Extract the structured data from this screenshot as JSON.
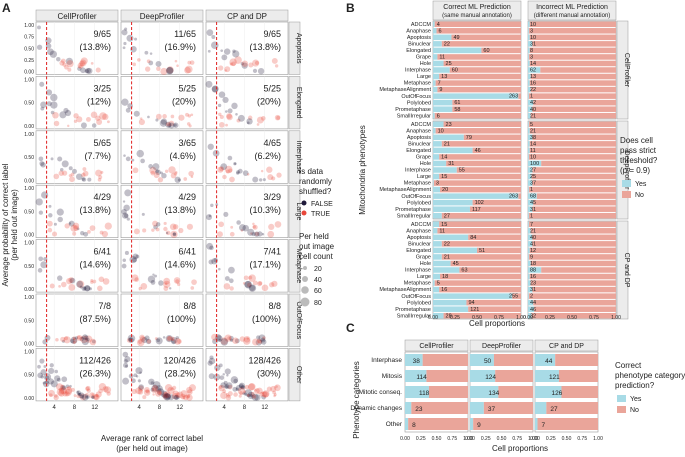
{
  "colors": {
    "false_color": "#1f1a3a",
    "true_color": "#e8473a",
    "yes_color": "#a8dbe6",
    "no_color": "#eaa59a",
    "strip_bg": "#ececec",
    "dashed": "#e02020"
  },
  "panel_labels": {
    "a": "A",
    "b": "B",
    "c": "C"
  },
  "chart_data": [
    {
      "type": "scatter",
      "panel": "A",
      "columns": [
        "CellProfiler",
        "DeepProfiler",
        "CP and DP"
      ],
      "rows": [
        "Apoptosis",
        "Elongated",
        "Interphase",
        "Large",
        "Metaphase",
        "OutOfFocus",
        "Other"
      ],
      "annotations": [
        [
          "9/65",
          "(13.8%)",
          "11/65",
          "(16.9%)",
          "9/65",
          "(13.8%)"
        ],
        [
          "3/25",
          "(12%)",
          "5/25",
          "(20%)",
          "5/25",
          "(20%)"
        ],
        [
          "5/65",
          "(7.7%)",
          "3/65",
          "(4.6%)",
          "4/65",
          "(6.2%)"
        ],
        [
          "4/29",
          "(13.8%)",
          "4/29",
          "(13.8%)",
          "3/29",
          "(10.3%)"
        ],
        [
          "6/41",
          "(14.6%)",
          "6/41",
          "(14.6%)",
          "7/41",
          "(17.1%)"
        ],
        [
          "7/8",
          "(87.5%)",
          "8/8",
          "(100%)",
          "8/8",
          "(100%)"
        ],
        [
          "112/426",
          "(26.3%)",
          "120/426",
          "(28.2%)",
          "128/426",
          "(30%)"
        ]
      ],
      "xlabel": "Average rank of correct label",
      "xlabel2": "(per held out image)",
      "ylabel": "Average probability of correct label",
      "ylabel2": "(per held out image)",
      "x_ticks": [
        "4",
        "8",
        "12"
      ],
      "y_ticks": [
        "0.00",
        "0.25",
        "0.50",
        "0.75",
        "1.00"
      ],
      "xlim": [
        1,
        16
      ],
      "ylim": [
        0,
        1
      ],
      "dashed_x": 2.5,
      "legend_shuffled": {
        "title1": "Is data",
        "title2": "randomly",
        "title3": "shuffled?",
        "items": [
          "FALSE",
          "TRUE"
        ]
      },
      "legend_size": {
        "title1": "Per held",
        "title2": "out image",
        "title3": "cell count",
        "items": [
          "20",
          "40",
          "60",
          "80"
        ]
      }
    },
    {
      "type": "bar",
      "panel": "B",
      "orientation": "horizontal-stacked",
      "columns": [
        "Correct ML Prediction",
        "Incorrect ML Prediction"
      ],
      "columns_sub": [
        "(same manual annotation)",
        "(different manual annotation)"
      ],
      "rows": [
        "CellProfiler",
        "DeepProfiler",
        "CP and DP"
      ],
      "categories": [
        "ADCCM",
        "Anaphase",
        "Apoptosis",
        "Binuclear",
        "Elongated",
        "Grape",
        "Hole",
        "Interphase",
        "Large",
        "Metaphase",
        "MetaphaseAlignment",
        "OutOfFocus",
        "Polylobed",
        "Prometaphase",
        "SmallIrregular"
      ],
      "counts": [
        [
          [
            4,
            6,
            49,
            22,
            60,
            11,
            25,
            60,
            13,
            7,
            9,
            263,
            61,
            58,
            6
          ],
          [
            10,
            3,
            10,
            31,
            8,
            3,
            14,
            62,
            13,
            16,
            22,
            1,
            42,
            40,
            21
          ]
        ],
        [
          [
            23,
            10,
            79,
            21,
            46,
            14,
            31,
            55,
            15,
            3,
            20,
            263,
            102,
            117,
            27
          ],
          [
            5,
            21,
            38,
            14,
            11,
            10,
            100,
            27,
            25,
            37,
            1,
            68,
            45,
            31,
            1
          ]
        ],
        [
          [
            15,
            11,
            84,
            22,
            51,
            21,
            45,
            63,
            18,
            5,
            16,
            255,
            94,
            121,
            28
          ],
          [
            7,
            21,
            40,
            41,
            12,
            9,
            18,
            88,
            16,
            23,
            31,
            2,
            44,
            46,
            32
          ]
        ]
      ],
      "yes_fraction": [
        [
          [
            0.02,
            0.04,
            0.21,
            0.1,
            0.55,
            0.05,
            0.12,
            0.19,
            0.07,
            0.03,
            0.05,
            0.97,
            0.22,
            0.22,
            0.02
          ],
          [
            0.02,
            0.01,
            0.02,
            0.05,
            0.02,
            0.01,
            0.02,
            0.14,
            0.03,
            0.02,
            0.03,
            0.01,
            0.06,
            0.05,
            0.03
          ]
        ],
        [
          [
            0.12,
            0.03,
            0.35,
            0.1,
            0.45,
            0.07,
            0.15,
            0.27,
            0.07,
            0.01,
            0.08,
            0.97,
            0.45,
            0.42,
            0.1
          ],
          [
            0.01,
            0.02,
            0.05,
            0.02,
            0.02,
            0.01,
            0.15,
            0.05,
            0.04,
            0.05,
            0.01,
            0.1,
            0.06,
            0.05,
            0.01
          ]
        ],
        [
          [
            0.07,
            0.05,
            0.4,
            0.1,
            0.5,
            0.1,
            0.2,
            0.3,
            0.08,
            0.02,
            0.07,
            0.9,
            0.38,
            0.4,
            0.12
          ],
          [
            0.01,
            0.03,
            0.05,
            0.05,
            0.02,
            0.01,
            0.03,
            0.15,
            0.02,
            0.03,
            0.05,
            0.01,
            0.06,
            0.07,
            0.04
          ]
        ]
      ],
      "xlabel": "Cell proportions",
      "ylabel": "Mitochondria phenotypes",
      "x_ticks": [
        "0.00",
        "0.25",
        "0.50",
        "0.75",
        "1.00"
      ],
      "legend": {
        "title1": "Does cell",
        "title2": "pass strict",
        "title3": "threshold?",
        "title4": "(p = 0.9)",
        "items": [
          "Yes",
          "No"
        ]
      }
    },
    {
      "type": "bar",
      "panel": "C",
      "orientation": "horizontal-stacked",
      "columns": [
        "CellProfiler",
        "DeepProfiler",
        "CP and DP"
      ],
      "categories": [
        "Interphase",
        "Mitosis",
        "Mitotic conseq.",
        "Dynamic changes",
        "Other"
      ],
      "counts": [
        [
          38,
          114,
          118,
          23,
          8
        ],
        [
          50,
          124,
          134,
          37,
          9
        ],
        [
          44,
          121,
          126,
          27,
          7
        ]
      ],
      "yes_fraction": [
        [
          0.28,
          0.34,
          0.38,
          0.1,
          0.05
        ],
        [
          0.38,
          0.4,
          0.45,
          0.22,
          0.05
        ],
        [
          0.32,
          0.38,
          0.42,
          0.18,
          0.04
        ]
      ],
      "xlabel": "Cell proportions",
      "ylabel": "Phenotype categories",
      "x_ticks": [
        "0.00",
        "0.25",
        "0.50",
        "0.75",
        "1.00"
      ],
      "legend": {
        "title1": "Correct",
        "title2": "phenotype category",
        "title3": "prediction?",
        "items": [
          "Yes",
          "No"
        ]
      }
    }
  ]
}
